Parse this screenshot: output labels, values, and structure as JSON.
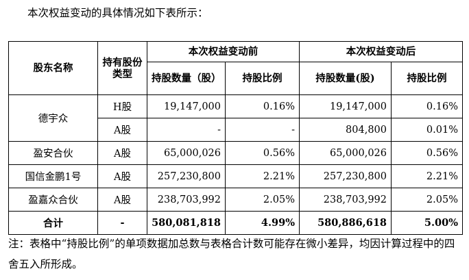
{
  "intro_text": "本次权益变动的具体情况如下表所示：",
  "table": {
    "headers": {
      "shareholder": "股东名称",
      "share_type": "持有股份类型",
      "before_group": "本次权益变动前",
      "after_group": "本次权益变动后",
      "before_shares": "持股数量（股）",
      "before_ratio": "持股比例",
      "after_shares": "持股数量(股)",
      "after_ratio": "持股比例"
    },
    "rows": [
      {
        "name": "德宇众",
        "type": "H股",
        "before_shares": "19,147,000",
        "before_ratio": "0.16%",
        "after_shares": "19,147,000",
        "after_ratio": "0.16%"
      },
      {
        "name": "",
        "type": "A股",
        "before_shares": "-",
        "before_ratio": "-",
        "after_shares": "804,800",
        "after_ratio": "0.01%"
      },
      {
        "name": "盈安合伙",
        "type": "A股",
        "before_shares": "65,000,026",
        "before_ratio": "0.56%",
        "after_shares": "65,000,026",
        "after_ratio": "0.56%"
      },
      {
        "name": "国信金鹏1号",
        "type": "A股",
        "before_shares": "257,230,800",
        "before_ratio": "2.21%",
        "after_shares": "257,230,800",
        "after_ratio": "2.21%"
      },
      {
        "name": "盈嘉众合伙",
        "type": "A股",
        "before_shares": "238,703,992",
        "before_ratio": "2.05%",
        "after_shares": "238,703,992",
        "after_ratio": "2.05%"
      }
    ],
    "total": {
      "label": "合计",
      "type": "-",
      "before_shares": "580,081,818",
      "before_ratio": "4.99%",
      "after_shares": "580,886,618",
      "after_ratio": "5.00%"
    }
  },
  "note_text": "注：表格中“持股比例”的单项数据加总数与表格合计数可能存在微小差异，均因计算过程中的四舍五入所形成。"
}
